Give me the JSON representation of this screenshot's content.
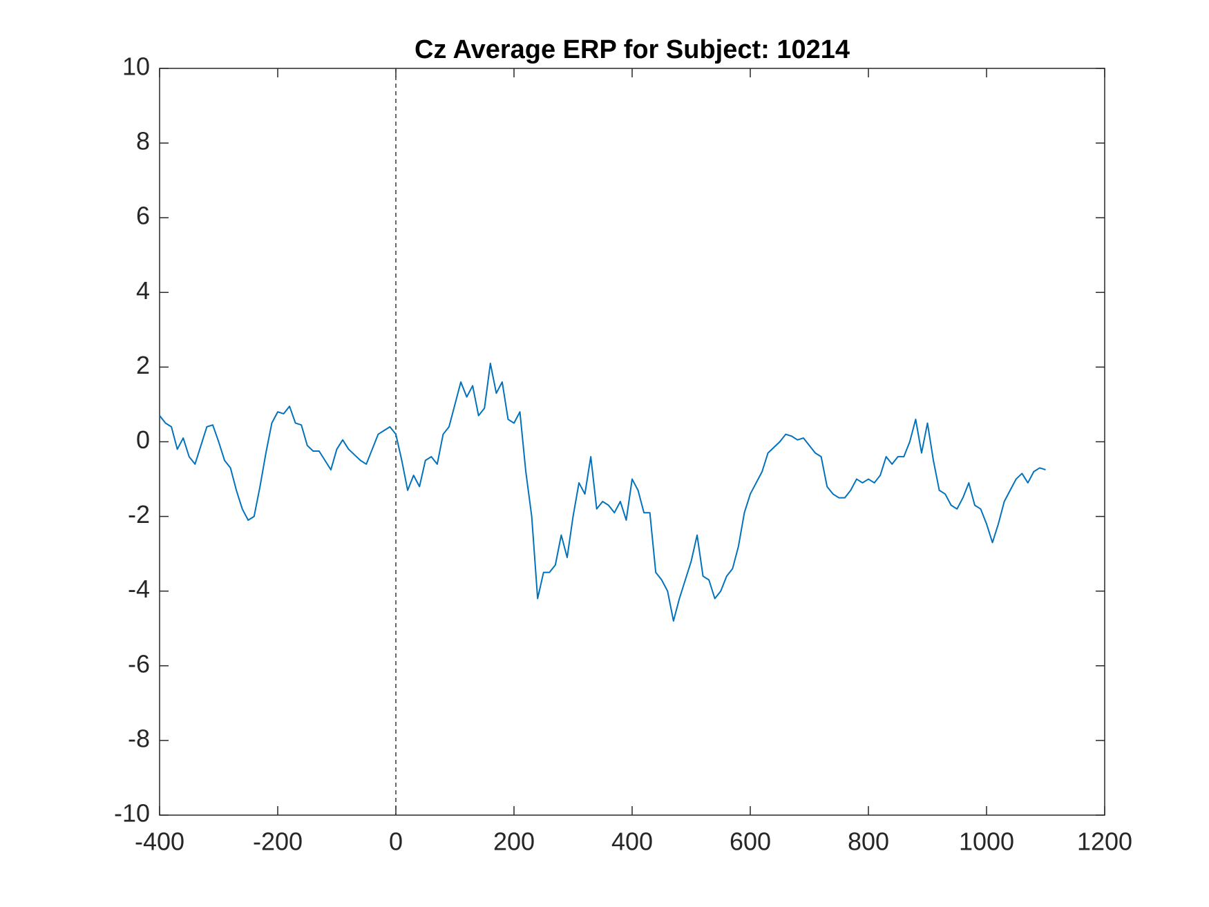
{
  "chart_data": {
    "type": "line",
    "title": "Cz Average ERP for Subject: 10214",
    "x": [
      -400,
      -390,
      -380,
      -370,
      -360,
      -350,
      -340,
      -330,
      -320,
      -310,
      -300,
      -290,
      -280,
      -270,
      -260,
      -250,
      -240,
      -230,
      -220,
      -210,
      -200,
      -190,
      -180,
      -170,
      -160,
      -150,
      -140,
      -130,
      -120,
      -110,
      -100,
      -90,
      -80,
      -70,
      -60,
      -50,
      -40,
      -30,
      -20,
      -10,
      0,
      10,
      20,
      30,
      40,
      50,
      60,
      70,
      80,
      90,
      100,
      110,
      120,
      130,
      140,
      150,
      160,
      170,
      180,
      190,
      200,
      210,
      220,
      230,
      240,
      250,
      260,
      270,
      280,
      290,
      300,
      310,
      320,
      330,
      340,
      350,
      360,
      370,
      380,
      390,
      400,
      410,
      420,
      430,
      440,
      450,
      460,
      470,
      480,
      490,
      500,
      510,
      520,
      530,
      540,
      550,
      560,
      570,
      580,
      590,
      600,
      610,
      620,
      630,
      640,
      650,
      660,
      670,
      680,
      690,
      700,
      710,
      720,
      730,
      740,
      750,
      760,
      770,
      780,
      790,
      800,
      810,
      820,
      830,
      840,
      850,
      860,
      870,
      880,
      890,
      900,
      910,
      920,
      930,
      940,
      950,
      960,
      970,
      980,
      990,
      1000,
      1010,
      1020,
      1030,
      1040,
      1050,
      1060,
      1070,
      1080,
      1090,
      1100
    ],
    "series": [
      {
        "color": "#0072bd",
        "values": [
          0.7,
          0.5,
          0.4,
          -0.2,
          0.1,
          -0.4,
          -0.6,
          -0.1,
          0.4,
          0.45,
          0.0,
          -0.5,
          -0.7,
          -1.3,
          -1.8,
          -2.1,
          -2.0,
          -1.2,
          -0.3,
          0.5,
          0.8,
          0.75,
          0.95,
          0.5,
          0.45,
          -0.1,
          -0.25,
          -0.25,
          -0.5,
          -0.75,
          -0.2,
          0.05,
          -0.2,
          -0.35,
          -0.5,
          -0.6,
          -0.2,
          0.2,
          0.3,
          0.4,
          0.2,
          -0.5,
          -1.3,
          -0.9,
          -1.2,
          -0.5,
          -0.4,
          -0.6,
          0.2,
          0.4,
          1.0,
          1.6,
          1.2,
          1.5,
          0.7,
          0.9,
          2.1,
          1.3,
          1.6,
          0.6,
          0.5,
          0.8,
          -0.8,
          -2.0,
          -4.2,
          -3.5,
          -3.5,
          -3.3,
          -2.5,
          -3.1,
          -2.0,
          -1.1,
          -1.4,
          -0.4,
          -1.8,
          -1.6,
          -1.7,
          -1.9,
          -1.6,
          -2.1,
          -1.0,
          -1.3,
          -1.9,
          -1.9,
          -3.5,
          -3.7,
          -4.0,
          -4.8,
          -4.2,
          -3.7,
          -3.2,
          -2.5,
          -3.6,
          -3.7,
          -4.2,
          -4.0,
          -3.6,
          -3.4,
          -2.8,
          -1.9,
          -1.4,
          -1.1,
          -0.8,
          -0.3,
          -0.15,
          0.0,
          0.2,
          0.15,
          0.05,
          0.1,
          -0.1,
          -0.3,
          -0.4,
          -1.2,
          -1.4,
          -1.5,
          -1.5,
          -1.3,
          -1.0,
          -1.1,
          -1.0,
          -1.1,
          -0.9,
          -0.4,
          -0.6,
          -0.4,
          -0.4,
          0.0,
          0.6,
          -0.3,
          0.5,
          -0.5,
          -1.3,
          -1.4,
          -1.7,
          -1.8,
          -1.5,
          -1.1,
          -1.7,
          -1.8,
          -2.2,
          -2.7,
          -2.2,
          -1.6,
          -1.3,
          -1.0,
          -0.85,
          -1.1,
          -0.8,
          -0.7,
          -0.75
        ]
      }
    ],
    "xlim": [
      -400,
      1200
    ],
    "xticks": [
      -400,
      -200,
      0,
      200,
      400,
      600,
      800,
      1000,
      1200
    ],
    "ylim": [
      -10,
      10
    ],
    "yticks": [
      -10,
      -8,
      -6,
      -4,
      -2,
      0,
      2,
      4,
      6,
      8,
      10
    ],
    "vlines": [
      0
    ],
    "grid": false
  }
}
